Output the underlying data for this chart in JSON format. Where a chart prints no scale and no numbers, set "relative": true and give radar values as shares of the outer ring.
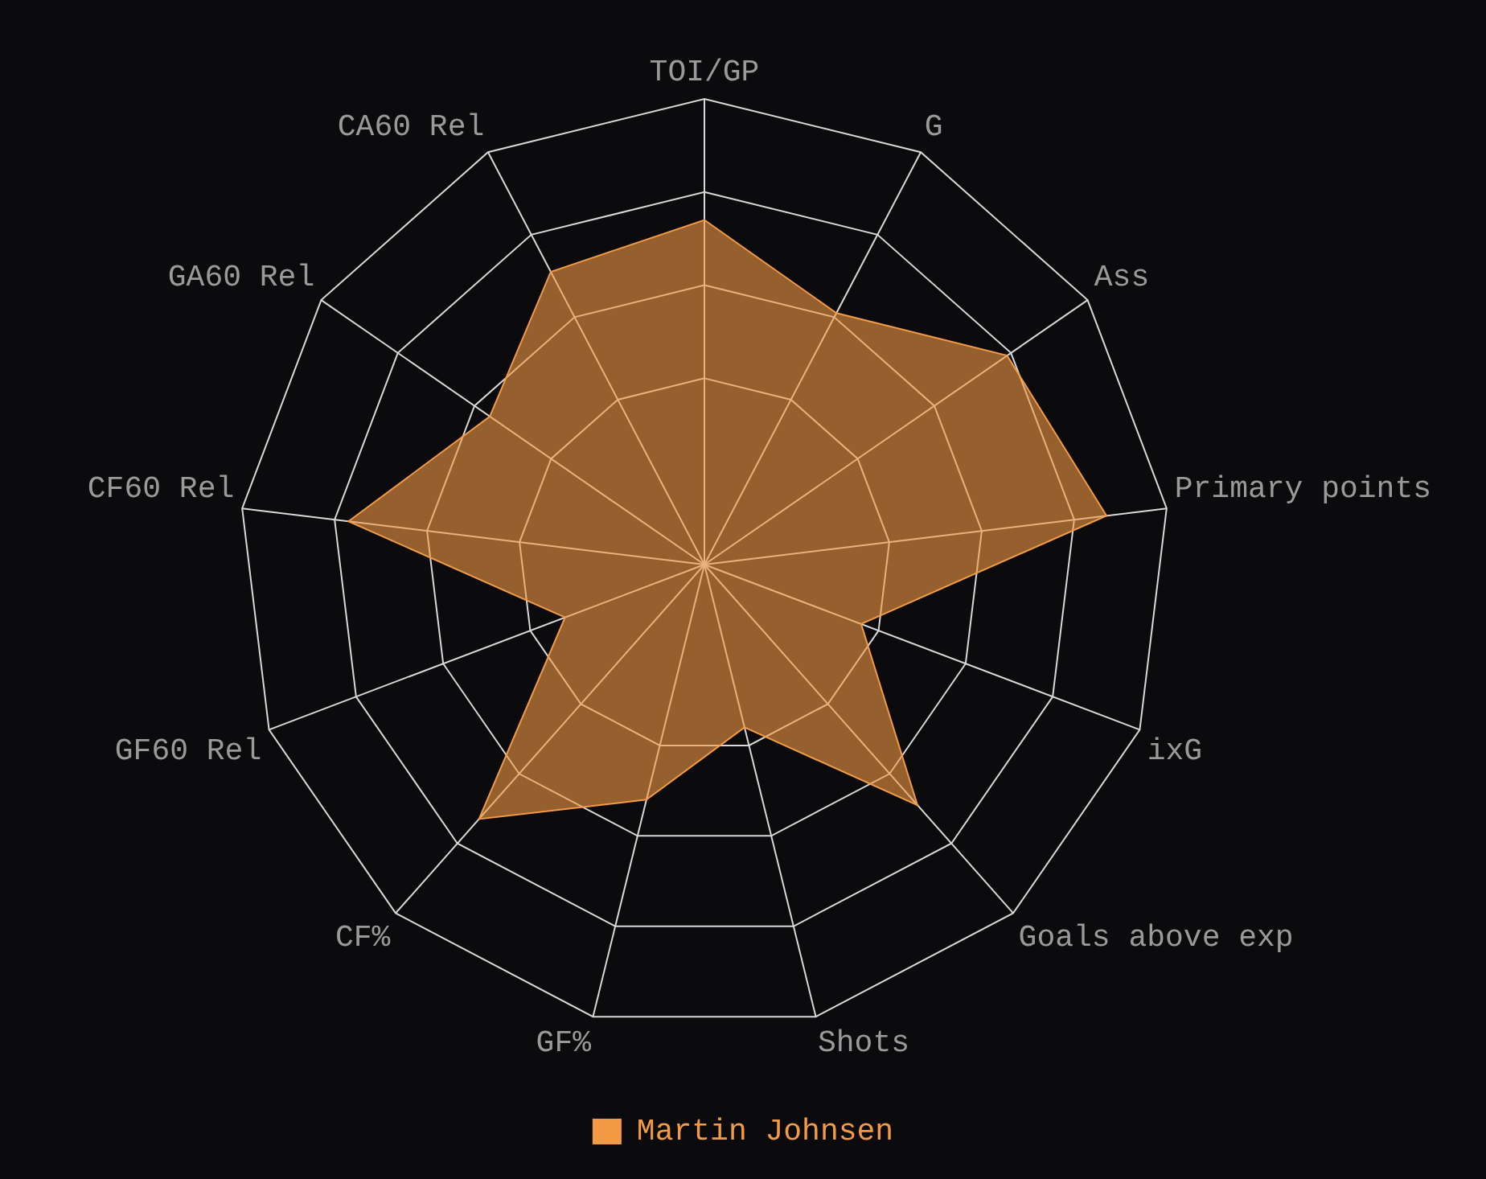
{
  "chart_data": {
    "type": "radar",
    "relative": true,
    "legend": "bottom",
    "grid": true,
    "marker": "none",
    "categories": [
      "TOI/GP",
      "G",
      "Ass",
      "Primary points",
      "ixG",
      "Goals above exp",
      "Shots",
      "GF%",
      "CF%",
      "GF60 Rel",
      "CF60 Rel",
      "GA60 Rel",
      "CA60 Rel"
    ],
    "series": [
      {
        "name": "Martin Johnsen",
        "color": "#f39a45",
        "values": [
          0.74,
          0.61,
          0.79,
          0.87,
          0.36,
          0.69,
          0.36,
          0.52,
          0.73,
          0.32,
          0.77,
          0.56,
          0.71
        ]
      }
    ]
  }
}
